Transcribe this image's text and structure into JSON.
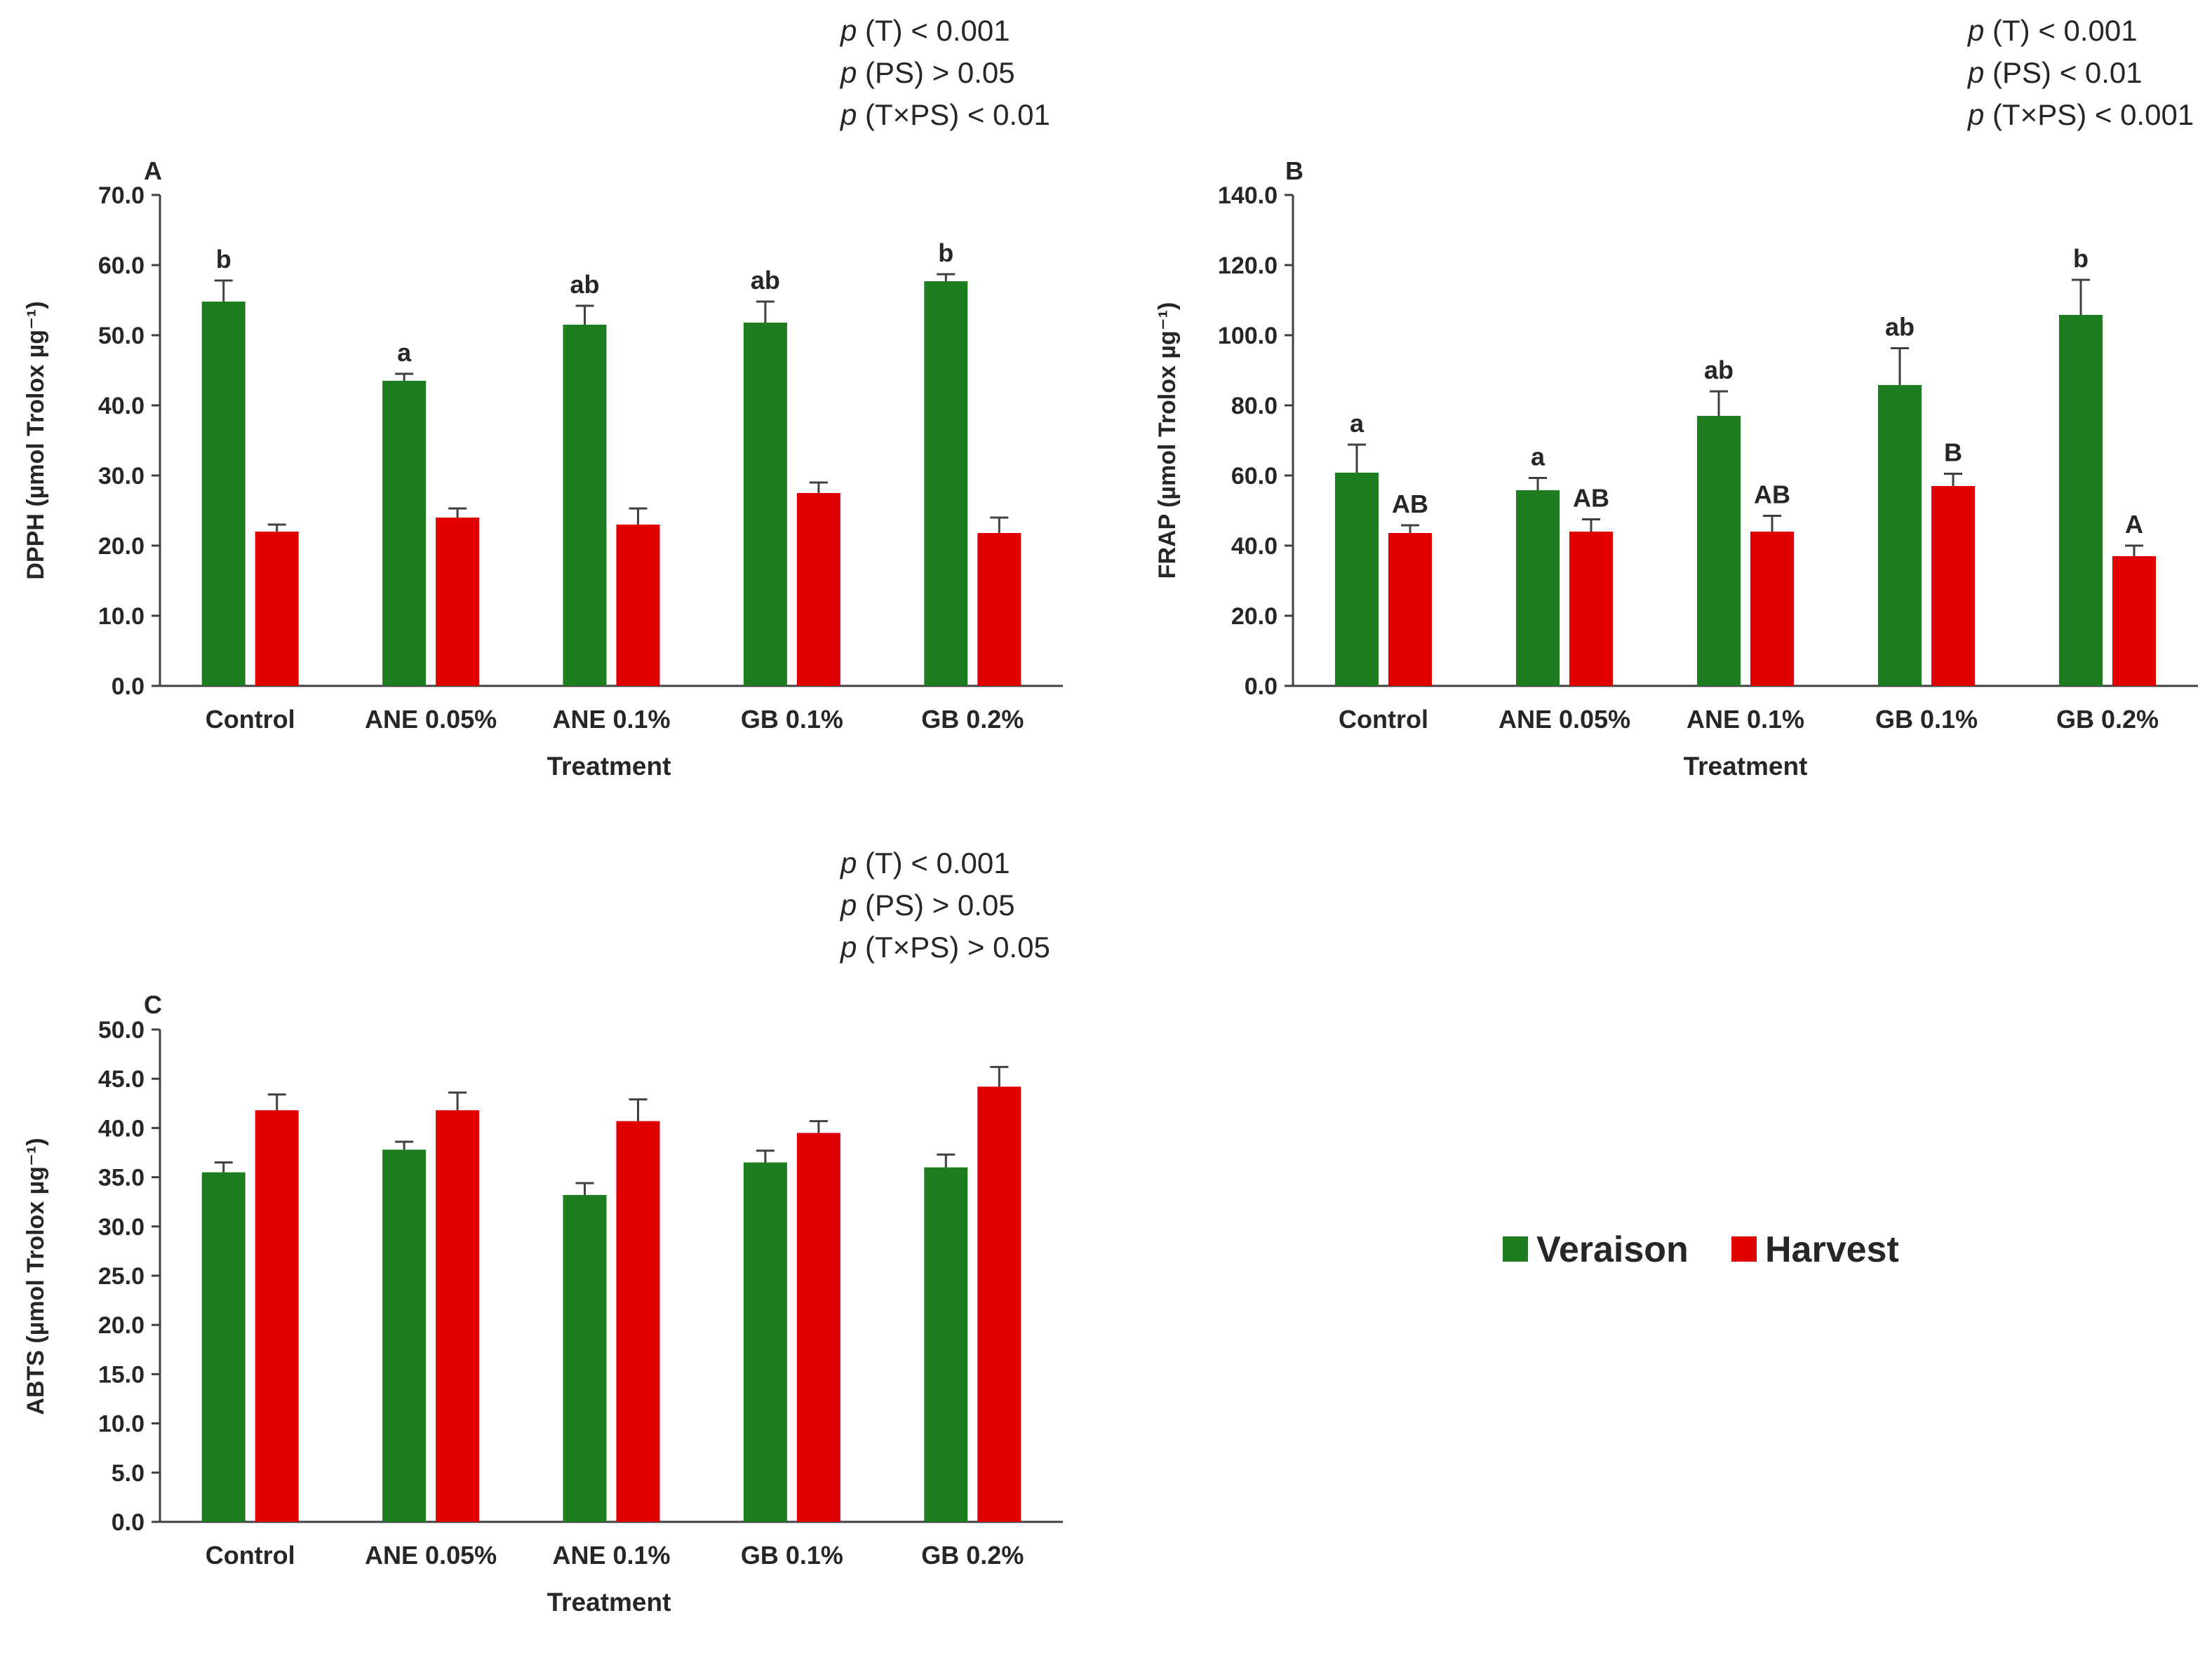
{
  "legend": {
    "items": [
      {
        "label": "Veraison",
        "color": "#1e7d1e"
      },
      {
        "label": "Harvest",
        "color": "#e00000"
      }
    ]
  },
  "chart_data": [
    {
      "type": "bar",
      "panel_label": "A",
      "ylabel": "DPPH (µmol Trolox µg⁻¹)",
      "xlabel": "Treatment",
      "categories": [
        "Control",
        "ANE 0.05%",
        "ANE 0.1%",
        "GB 0.1%",
        "GB 0.2%"
      ],
      "ylim": [
        0,
        70
      ],
      "yticks": [
        "0.0",
        "10.0",
        "20.0",
        "30.0",
        "40.0",
        "50.0",
        "60.0",
        "70.0"
      ],
      "series": [
        {
          "name": "Veraison",
          "color": "#1e7d1e",
          "values": [
            54.8,
            43.5,
            51.5,
            51.8,
            57.7
          ],
          "errors": [
            3.0,
            1.0,
            2.7,
            3.0,
            1.0
          ],
          "sig": [
            "b",
            "a",
            "ab",
            "ab",
            "b"
          ]
        },
        {
          "name": "Harvest",
          "color": "#e00000",
          "values": [
            22.0,
            24.0,
            23.0,
            27.5,
            21.8
          ],
          "errors": [
            1.0,
            1.3,
            2.3,
            1.5,
            2.2
          ],
          "sig": [
            "",
            "",
            "",
            "",
            ""
          ]
        }
      ],
      "stats": [
        {
          "p": "p",
          "rest": " (T) < 0.001"
        },
        {
          "p": "p",
          "rest": " (PS) > 0.05"
        },
        {
          "p": "p",
          "rest": " (T×PS) < 0.01"
        }
      ]
    },
    {
      "type": "bar",
      "panel_label": "B",
      "ylabel": "FRAP (µmol Trolox µg⁻¹)",
      "xlabel": "Treatment",
      "categories": [
        "Control",
        "ANE 0.05%",
        "ANE 0.1%",
        "GB 0.1%",
        "GB 0.2%"
      ],
      "ylim": [
        0,
        140
      ],
      "yticks": [
        "0.0",
        "20.0",
        "40.0",
        "60.0",
        "80.0",
        "100.0",
        "120.0",
        "140.0"
      ],
      "series": [
        {
          "name": "Veraison",
          "color": "#1e7d1e",
          "values": [
            60.8,
            55.8,
            77.0,
            85.8,
            105.8
          ],
          "errors": [
            8.0,
            3.5,
            7.0,
            10.5,
            10.0
          ],
          "sig": [
            "a",
            "a",
            "ab",
            "ab",
            "b"
          ]
        },
        {
          "name": "Harvest",
          "color": "#e00000",
          "values": [
            43.6,
            44.0,
            44.0,
            57.0,
            37.0
          ],
          "errors": [
            2.2,
            3.5,
            4.5,
            3.5,
            3.0
          ],
          "sig": [
            "AB",
            "AB",
            "AB",
            "B",
            "A"
          ]
        }
      ],
      "stats": [
        {
          "p": "p",
          "rest": " (T) < 0.001"
        },
        {
          "p": "p",
          "rest": " (PS) < 0.01"
        },
        {
          "p": "p",
          "rest": " (T×PS) < 0.001"
        }
      ]
    },
    {
      "type": "bar",
      "panel_label": "C",
      "ylabel": "ABTS (µmol Trolox µg⁻¹)",
      "xlabel": "Treatment",
      "categories": [
        "Control",
        "ANE 0.05%",
        "ANE 0.1%",
        "GB 0.1%",
        "GB 0.2%"
      ],
      "ylim": [
        0,
        50
      ],
      "yticks": [
        "0.0",
        "5.0",
        "10.0",
        "15.0",
        "20.0",
        "25.0",
        "30.0",
        "35.0",
        "40.0",
        "45.0",
        "50.0"
      ],
      "series": [
        {
          "name": "Veraison",
          "color": "#1e7d1e",
          "values": [
            35.5,
            37.8,
            33.2,
            36.5,
            36.0
          ],
          "errors": [
            1.0,
            0.8,
            1.2,
            1.2,
            1.3
          ],
          "sig": [
            "",
            "",
            "",
            "",
            ""
          ]
        },
        {
          "name": "Harvest",
          "color": "#e00000",
          "values": [
            41.8,
            41.8,
            40.7,
            39.5,
            44.2
          ],
          "errors": [
            1.6,
            1.8,
            2.2,
            1.2,
            2.0
          ],
          "sig": [
            "",
            "",
            "",
            "",
            ""
          ]
        }
      ],
      "stats": [
        {
          "p": "p",
          "rest": " (T) < 0.001"
        },
        {
          "p": "p",
          "rest": " (PS) > 0.05"
        },
        {
          "p": "p",
          "rest": " (T×PS) > 0.05"
        }
      ]
    }
  ]
}
